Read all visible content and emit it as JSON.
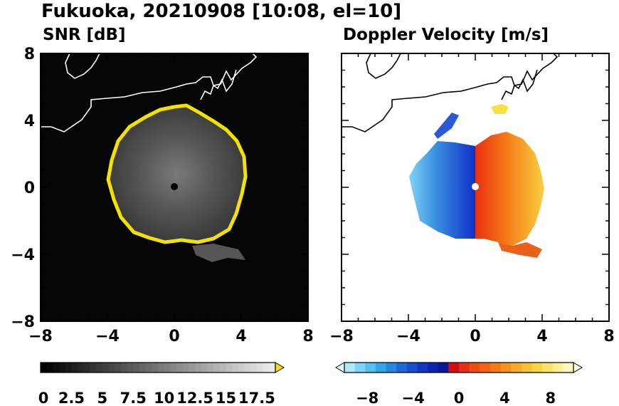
{
  "figure": {
    "title": "Fukuoka, 20210908 [10:08, el=10]"
  },
  "colors": {
    "snr_background": "#050505",
    "snr_edge": "#f2e200",
    "coast": "#000000"
  },
  "chart_data": [
    {
      "type": "heatmap",
      "title": "SNR [dB]",
      "xlim": [
        -8,
        8
      ],
      "ylim": [
        -8,
        8
      ],
      "xticks": [
        "−8",
        "−4",
        "0",
        "4",
        "8"
      ],
      "yticks": [
        "8",
        "4",
        "0",
        "−4",
        "−8"
      ],
      "colorbar": {
        "range": [
          0,
          19
        ],
        "extend": "max",
        "tick_labels": [
          "0",
          "2.5",
          "5",
          "7.5",
          "10",
          "12.5",
          "15",
          "17.5"
        ],
        "colormap": "greys"
      }
    },
    {
      "type": "heatmap",
      "title": "Doppler Velocity [m/s]",
      "xlim": [
        -8,
        8
      ],
      "ylim": [
        -8,
        8
      ],
      "xticks": [
        "−8",
        "−4",
        "0",
        "4",
        "8"
      ],
      "yticks": [
        "8",
        "4",
        "0",
        "−4",
        "−8"
      ],
      "colorbar": {
        "range": [
          -10,
          10
        ],
        "extend": "both",
        "tick_labels": [
          "−8",
          "−4",
          "0",
          "4",
          "8"
        ],
        "colormap": "blue-to-yellow diverging"
      }
    }
  ]
}
